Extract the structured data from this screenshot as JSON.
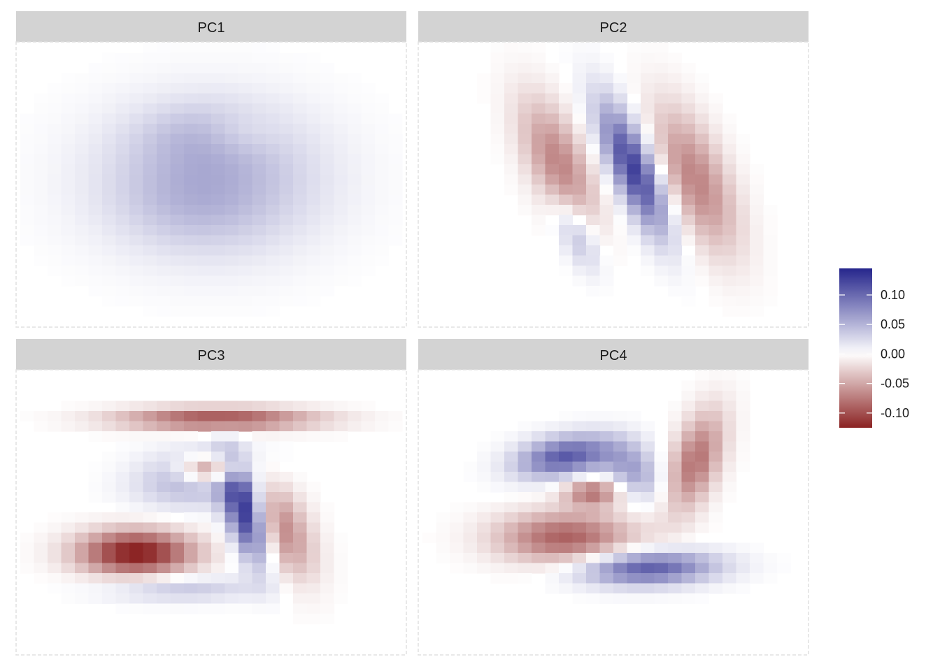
{
  "chart_data": {
    "type": "heatmap",
    "grid_size": [
      28,
      28
    ],
    "panels": [
      {
        "label": "PC1",
        "components": [
          {
            "cx": 13.5,
            "cy": 13.0,
            "sx": 5.8,
            "sy": 5.2,
            "rho": 0.0,
            "amp": 0.05
          },
          {
            "cx": 13.0,
            "cy": 8.5,
            "sx": 3.2,
            "sy": 2.2,
            "rho": 0.0,
            "amp": 0.018
          },
          {
            "cx": 12.0,
            "cy": 15.5,
            "sx": 3.5,
            "sy": 2.8,
            "rho": 0.0,
            "amp": 0.01
          },
          {
            "cx": 15.5,
            "cy": 8.5,
            "sx": 2.0,
            "sy": 1.5,
            "rho": 0.0,
            "amp": -0.015
          }
        ]
      },
      {
        "label": "PC2",
        "components": [
          {
            "cx": 15.0,
            "cy": 12.0,
            "sx": 1.8,
            "sy": 4.5,
            "rho": 0.75,
            "amp": 0.13
          },
          {
            "cx": 10.8,
            "cy": 18.5,
            "sx": 1.2,
            "sy": 2.5,
            "rho": 0.6,
            "amp": 0.05
          },
          {
            "cx": 9.5,
            "cy": 11.5,
            "sx": 2.0,
            "sy": 4.5,
            "rho": 0.6,
            "amp": -0.07
          },
          {
            "cx": 19.5,
            "cy": 13.0,
            "sx": 2.2,
            "sy": 5.0,
            "rho": 0.6,
            "amp": -0.07
          }
        ]
      },
      {
        "label": "PC3",
        "components": [
          {
            "cx": 16.0,
            "cy": 13.5,
            "sx": 1.2,
            "sy": 3.5,
            "rho": 0.55,
            "amp": 0.15
          },
          {
            "cx": 12.5,
            "cy": 10.0,
            "sx": 3.0,
            "sy": 2.0,
            "rho": -0.2,
            "amp": 0.06
          },
          {
            "cx": 14.0,
            "cy": 4.3,
            "sx": 5.0,
            "sy": 0.8,
            "rho": 0.0,
            "amp": -0.1
          },
          {
            "cx": 13.5,
            "cy": 9.3,
            "sx": 1.6,
            "sy": 1.0,
            "rho": 0.0,
            "amp": -0.11
          },
          {
            "cx": 8.0,
            "cy": 17.5,
            "sx": 3.0,
            "sy": 1.6,
            "rho": 0.0,
            "amp": -0.13
          },
          {
            "cx": 18.5,
            "cy": 15.0,
            "sx": 1.8,
            "sy": 3.5,
            "rho": 0.5,
            "amp": -0.07
          },
          {
            "cx": 11.0,
            "cy": 21.0,
            "sx": 4.0,
            "sy": 0.9,
            "rho": 0.0,
            "amp": 0.04
          }
        ]
      },
      {
        "label": "PC4",
        "components": [
          {
            "cx": 10.0,
            "cy": 8.0,
            "sx": 2.5,
            "sy": 1.5,
            "rho": -0.3,
            "amp": 0.11
          },
          {
            "cx": 15.0,
            "cy": 9.5,
            "sx": 1.5,
            "sy": 2.0,
            "rho": 0.3,
            "amp": 0.06
          },
          {
            "cx": 16.0,
            "cy": 19.0,
            "sx": 3.5,
            "sy": 1.2,
            "rho": -0.1,
            "amp": 0.11
          },
          {
            "cx": 19.5,
            "cy": 8.5,
            "sx": 1.5,
            "sy": 3.5,
            "rho": -0.5,
            "amp": -0.08
          },
          {
            "cx": 10.0,
            "cy": 16.0,
            "sx": 3.5,
            "sy": 1.8,
            "rho": 0.0,
            "amp": -0.09
          },
          {
            "cx": 12.0,
            "cy": 11.5,
            "sx": 1.5,
            "sy": 1.0,
            "rho": 0.0,
            "amp": -0.08
          }
        ]
      }
    ],
    "colorbar": {
      "min": -0.125,
      "max": 0.145,
      "ticks": [
        0.1,
        0.05,
        0.0,
        -0.05,
        -0.1
      ],
      "tick_labels": [
        "0.10",
        "0.05",
        "0.00",
        "-0.05",
        "-0.10"
      ],
      "low_color": "#8b2323",
      "mid_color": "#ffffff",
      "high_color": "#26268c"
    },
    "legend_position": "right",
    "grid": false
  },
  "colors": {
    "strip_background": "#d3d3d3",
    "panel_border": "#e0e0e0",
    "text": "#1a1a1a"
  }
}
